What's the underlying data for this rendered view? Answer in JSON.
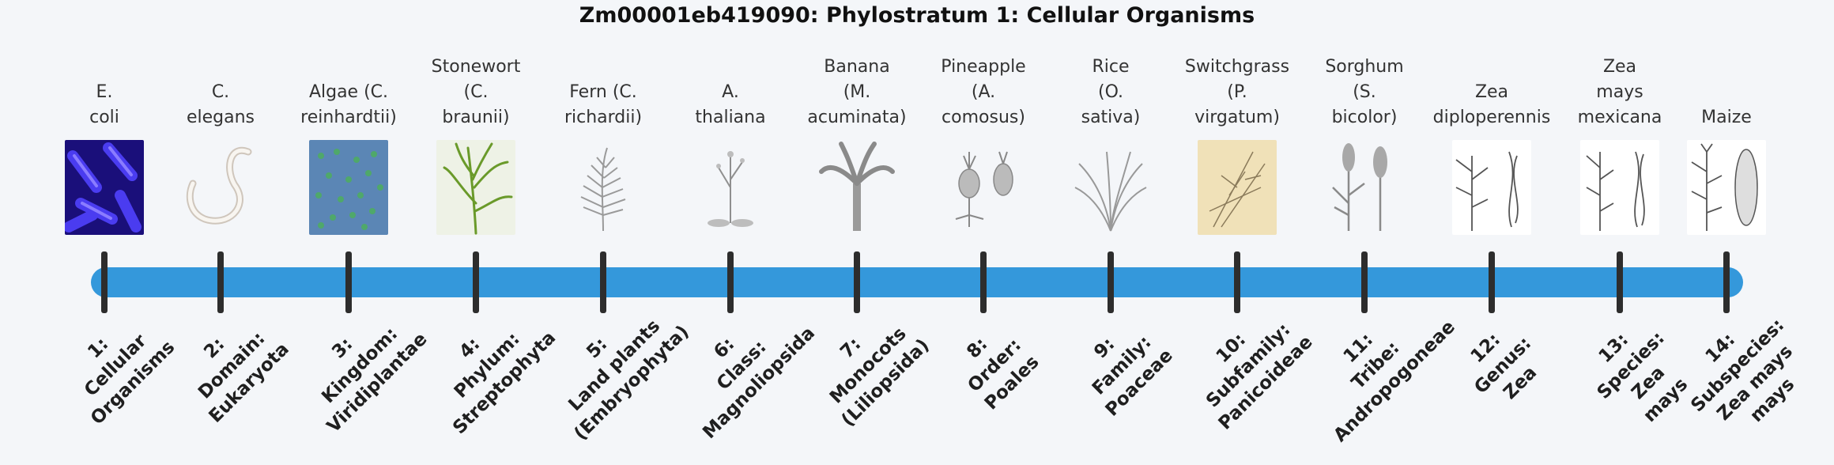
{
  "title": "Zm00001eb419090: Phylostratum 1: Cellular Organisms",
  "organisms": [
    {
      "label": [
        "E.",
        "coli"
      ],
      "icon": "bacteria-image",
      "rank": [
        "1:",
        "Cellular",
        "Organisms"
      ]
    },
    {
      "label": [
        "C.",
        "elegans"
      ],
      "icon": "worm-image",
      "rank": [
        "2:",
        "Domain:",
        "Eukaryota"
      ]
    },
    {
      "label": [
        "Algae (C.",
        "reinhardtii)"
      ],
      "icon": "algae-image",
      "rank": [
        "3:",
        "Kingdom:",
        "Viridiplantae"
      ]
    },
    {
      "label": [
        "Stonewort",
        "(C.",
        "braunii)"
      ],
      "icon": "stonewort-image",
      "rank": [
        "4:",
        "Phylum:",
        "Streptophyta"
      ]
    },
    {
      "label": [
        "Fern (C.",
        "richardii)"
      ],
      "icon": "fern-image",
      "rank": [
        "5:",
        "Land plants",
        "(Embryophyta)"
      ]
    },
    {
      "label": [
        "A.",
        "thaliana"
      ],
      "icon": "arabidopsis-image",
      "rank": [
        "6:",
        "Class:",
        "Magnoliopsida"
      ]
    },
    {
      "label": [
        "Banana",
        "(M.",
        "acuminata)"
      ],
      "icon": "banana-image",
      "rank": [
        "7:",
        "Monocots",
        "(Liliopsida)"
      ]
    },
    {
      "label": [
        "Pineapple",
        "(A.",
        "comosus)"
      ],
      "icon": "pineapple-image",
      "rank": [
        "8:",
        "Order:",
        "Poales"
      ]
    },
    {
      "label": [
        "Rice",
        "(O.",
        "sativa)"
      ],
      "icon": "rice-image",
      "rank": [
        "9:",
        "Family:",
        "Poaceae"
      ]
    },
    {
      "label": [
        "Switchgrass",
        "(P.",
        "virgatum)"
      ],
      "icon": "switchgrass-image",
      "rank": [
        "10:",
        "Subfamily:",
        "Panicoideae"
      ]
    },
    {
      "label": [
        "Sorghum",
        "(S.",
        "bicolor)"
      ],
      "icon": "sorghum-image",
      "rank": [
        "11:",
        "Tribe:",
        "Andropogoneae"
      ]
    },
    {
      "label": [
        "Zea",
        "diploperennis"
      ],
      "icon": "zea-diploperennis-image",
      "rank": [
        "12:",
        "Genus:",
        "Zea"
      ]
    },
    {
      "label": [
        "Zea",
        "mays",
        "mexicana"
      ],
      "icon": "zea-mexicana-image",
      "rank": [
        "13:",
        "Species:",
        "Zea",
        "mays"
      ]
    },
    {
      "label": [
        "Maize"
      ],
      "icon": "maize-image",
      "rank": [
        "14:",
        "Subspecies:",
        "Zea mays",
        "mays"
      ]
    }
  ],
  "colors": {
    "timeline": "#3498db",
    "tick": "#2d2d2d",
    "background": "#f4f6f9",
    "bacteria": "#2a1fb5",
    "algae": "#5b86b5"
  }
}
